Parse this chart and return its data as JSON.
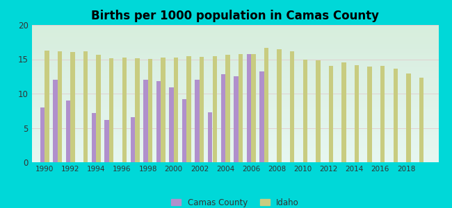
{
  "title": "Births per 1000 population in Camas County",
  "background_color": "#00d8d8",
  "plot_bg_top": "#e8f8f4",
  "plot_bg_bottom": "#d0eedd",
  "years": [
    1990,
    1991,
    1992,
    1993,
    1994,
    1995,
    1996,
    1997,
    1998,
    1999,
    2000,
    2001,
    2002,
    2003,
    2004,
    2005,
    2006,
    2007,
    2008,
    2009,
    2010,
    2011,
    2012,
    2013,
    2014,
    2015,
    2016,
    2017,
    2018,
    2019
  ],
  "camas_values": [
    8.0,
    12.0,
    9.0,
    null,
    7.2,
    6.2,
    null,
    6.6,
    12.0,
    11.8,
    10.9,
    9.2,
    12.0,
    7.3,
    12.8,
    12.5,
    15.8,
    13.2,
    null,
    null,
    null,
    null,
    null,
    null,
    null,
    null,
    null,
    null,
    null,
    null
  ],
  "idaho_values": [
    16.3,
    16.2,
    16.1,
    16.2,
    15.7,
    15.2,
    15.3,
    15.2,
    15.1,
    15.3,
    15.3,
    15.5,
    15.4,
    15.5,
    15.7,
    15.8,
    15.8,
    16.7,
    16.5,
    16.2,
    15.0,
    14.8,
    14.0,
    14.5,
    14.1,
    13.9,
    14.0,
    13.6,
    12.9,
    12.3
  ],
  "camas_color": "#b090cc",
  "idaho_color": "#c8cc80",
  "ylim": [
    0,
    20
  ],
  "yticks": [
    0,
    5,
    10,
    15,
    20
  ],
  "bar_width": 0.35,
  "xtick_years": [
    1990,
    1992,
    1994,
    1996,
    1998,
    2000,
    2002,
    2004,
    2006,
    2008,
    2010,
    2012,
    2014,
    2016,
    2018
  ]
}
